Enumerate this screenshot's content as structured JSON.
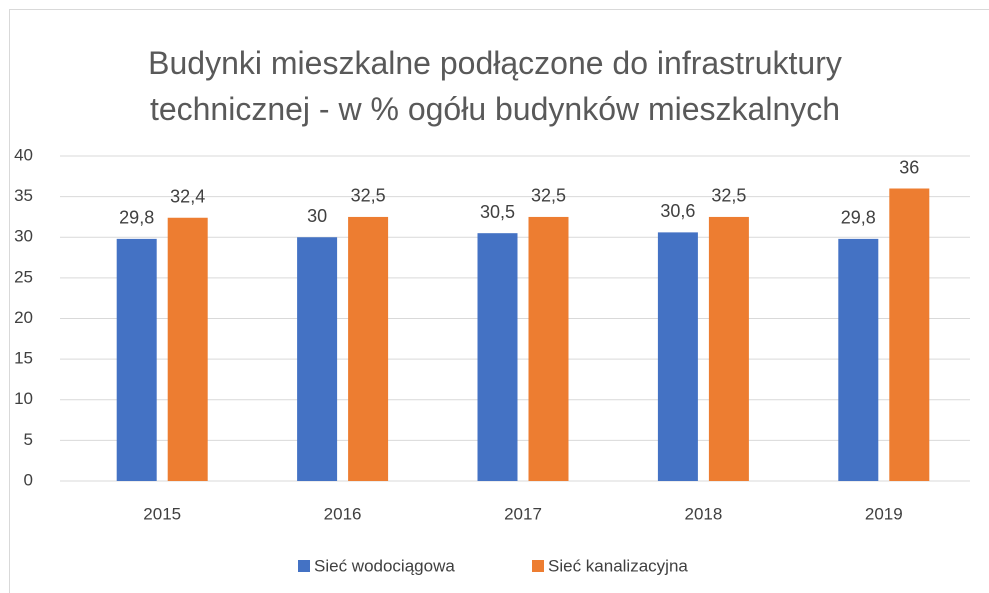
{
  "chart_data": {
    "type": "bar",
    "title": "Budynki mieszkalne podłączone do infrastruktury technicznej - w % ogółu budynków mieszkalnych",
    "categories": [
      "2015",
      "2016",
      "2017",
      "2018",
      "2019"
    ],
    "series": [
      {
        "name": "Sieć wodociągowa",
        "color": "#4472c4",
        "values": [
          29.8,
          30,
          30.5,
          30.6,
          29.8
        ],
        "value_labels": [
          "29,8",
          "30",
          "30,5",
          "30,6",
          "29,8"
        ]
      },
      {
        "name": "Sieć kanalizacyjna",
        "color": "#ed7d31",
        "values": [
          32.4,
          32.5,
          32.5,
          32.5,
          36
        ],
        "value_labels": [
          "32,4",
          "32,5",
          "32,5",
          "32,5",
          "36"
        ]
      }
    ],
    "ylim": [
      0,
      40
    ],
    "yticks": [
      0,
      5,
      10,
      15,
      20,
      25,
      30,
      35,
      40
    ],
    "grid": true,
    "legend": "bottom"
  }
}
